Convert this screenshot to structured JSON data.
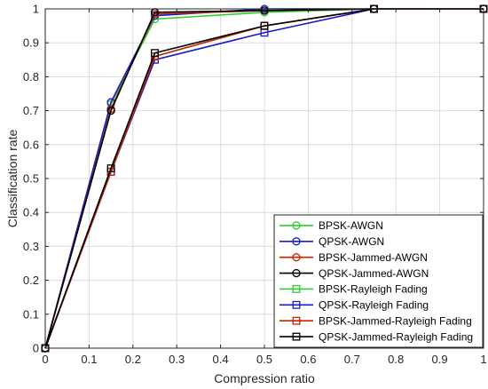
{
  "chart_data": {
    "type": "line",
    "title": "",
    "xlabel": "Compression ratio",
    "ylabel": "Classification rate",
    "xlim": [
      0,
      1
    ],
    "ylim": [
      0,
      1
    ],
    "xticks": [
      0,
      0.1,
      0.2,
      0.3,
      0.4,
      0.5,
      0.6,
      0.7,
      0.8,
      0.9,
      1
    ],
    "xtick_labels": [
      "0",
      "0.1",
      "0.2",
      "0.3",
      "0.4",
      "0.5",
      "0.6",
      "0.7",
      "0.8",
      "0.9",
      "1"
    ],
    "yticks": [
      0,
      0.1,
      0.2,
      0.3,
      0.4,
      0.5,
      0.6,
      0.7,
      0.8,
      0.9,
      1
    ],
    "ytick_labels": [
      "0",
      "0.1",
      "0.2",
      "0.3",
      "0.4",
      "0.5",
      "0.6",
      "0.7",
      "0.8",
      "0.9",
      "1"
    ],
    "grid": true,
    "legend_position": "bottom-right",
    "x": [
      0,
      0.15,
      0.25,
      0.5,
      0.75,
      1
    ],
    "series": [
      {
        "name": "BPSK-AWGN",
        "color": "#33cc33",
        "marker": "circle",
        "values": [
          0,
          0.72,
          0.97,
          0.99,
          1,
          1
        ]
      },
      {
        "name": "QPSK-AWGN",
        "color": "#1a1acc",
        "marker": "circle",
        "values": [
          0,
          0.725,
          0.98,
          1.0,
          1,
          1
        ]
      },
      {
        "name": "BPSK-Jammed-AWGN",
        "color": "#cc2200",
        "marker": "circle",
        "values": [
          0,
          0.705,
          0.985,
          0.995,
          1,
          1
        ]
      },
      {
        "name": "QPSK-Jammed-AWGN",
        "color": "#000000",
        "marker": "circle",
        "values": [
          0,
          0.7,
          0.99,
          0.995,
          1,
          1
        ]
      },
      {
        "name": "BPSK-Rayleigh Fading",
        "color": "#33cc33",
        "marker": "square",
        "values": [
          0,
          0.52,
          0.86,
          0.95,
          1,
          1
        ]
      },
      {
        "name": "QPSK-Rayleigh Fading",
        "color": "#1a1acc",
        "marker": "square",
        "values": [
          0,
          0.52,
          0.85,
          0.93,
          1,
          1
        ]
      },
      {
        "name": "BPSK-Jammed-Rayleigh Fading",
        "color": "#cc2200",
        "marker": "square",
        "values": [
          0,
          0.52,
          0.86,
          0.95,
          1,
          1
        ]
      },
      {
        "name": "QPSK-Jammed-Rayleigh Fading",
        "color": "#000000",
        "marker": "square",
        "values": [
          0,
          0.53,
          0.87,
          0.95,
          1,
          1
        ]
      }
    ]
  }
}
